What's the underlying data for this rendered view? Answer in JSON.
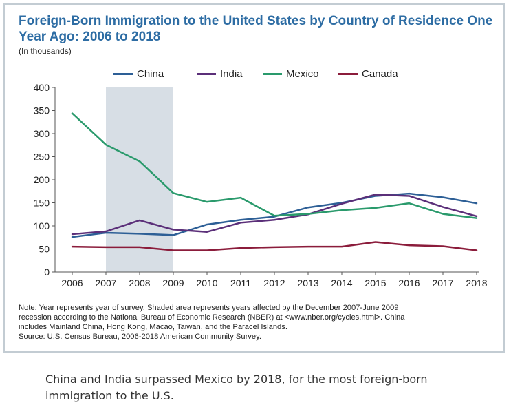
{
  "chart_data": {
    "type": "line",
    "title": "Foreign-Born Immigration to the United States by Country of Residence One Year Ago: 2006 to 2018",
    "subtitle": "(In thousands)",
    "x": [
      "2006",
      "2007",
      "2008",
      "2009",
      "2010",
      "2011",
      "2012",
      "2013",
      "2014",
      "2015",
      "2016",
      "2017",
      "2018"
    ],
    "series": [
      {
        "name": "China",
        "color": "#2d5f96",
        "values": [
          76,
          85,
          83,
          80,
          103,
          113,
          120,
          140,
          150,
          165,
          170,
          162,
          149
        ]
      },
      {
        "name": "India",
        "color": "#5b2f79",
        "values": [
          82,
          88,
          112,
          92,
          87,
          107,
          113,
          125,
          148,
          168,
          165,
          141,
          121
        ]
      },
      {
        "name": "Mexico",
        "color": "#2a9a6c",
        "values": [
          344,
          276,
          240,
          171,
          152,
          161,
          122,
          126,
          134,
          139,
          149,
          126,
          117
        ]
      },
      {
        "name": "Canada",
        "color": "#8b1c3b",
        "values": [
          55,
          54,
          54,
          47,
          47,
          52,
          54,
          55,
          55,
          65,
          58,
          56,
          47
        ]
      }
    ],
    "ylim": [
      0,
      400
    ],
    "yticks": [
      "0",
      "50",
      "100",
      "150",
      "200",
      "250",
      "300",
      "350",
      "400"
    ],
    "shaded_range": {
      "from": "2007",
      "to": "2009",
      "color": "#d7dee5"
    },
    "legend_position": "top",
    "grid": false
  },
  "note": {
    "lines": [
      "Note: Year represents year of survey. Shaded area represents years affected by the December 2007-June 2009",
      "recession according to the National Bureau of Economic Research (NBER) at <www.nber.org/cycles.html>. China",
      "includes Mainland China, Hong Kong, Macao, Taiwan, and the Paracel Islands.",
      "Source: U.S. Census Bureau, 2006-2018 American Community Survey."
    ]
  },
  "caption": "China and India surpassed Mexico by 2018, for the most foreign-born immigration to the U.S.",
  "colors": {
    "title": "#2e6da4",
    "frame": "#c3ccd3"
  }
}
